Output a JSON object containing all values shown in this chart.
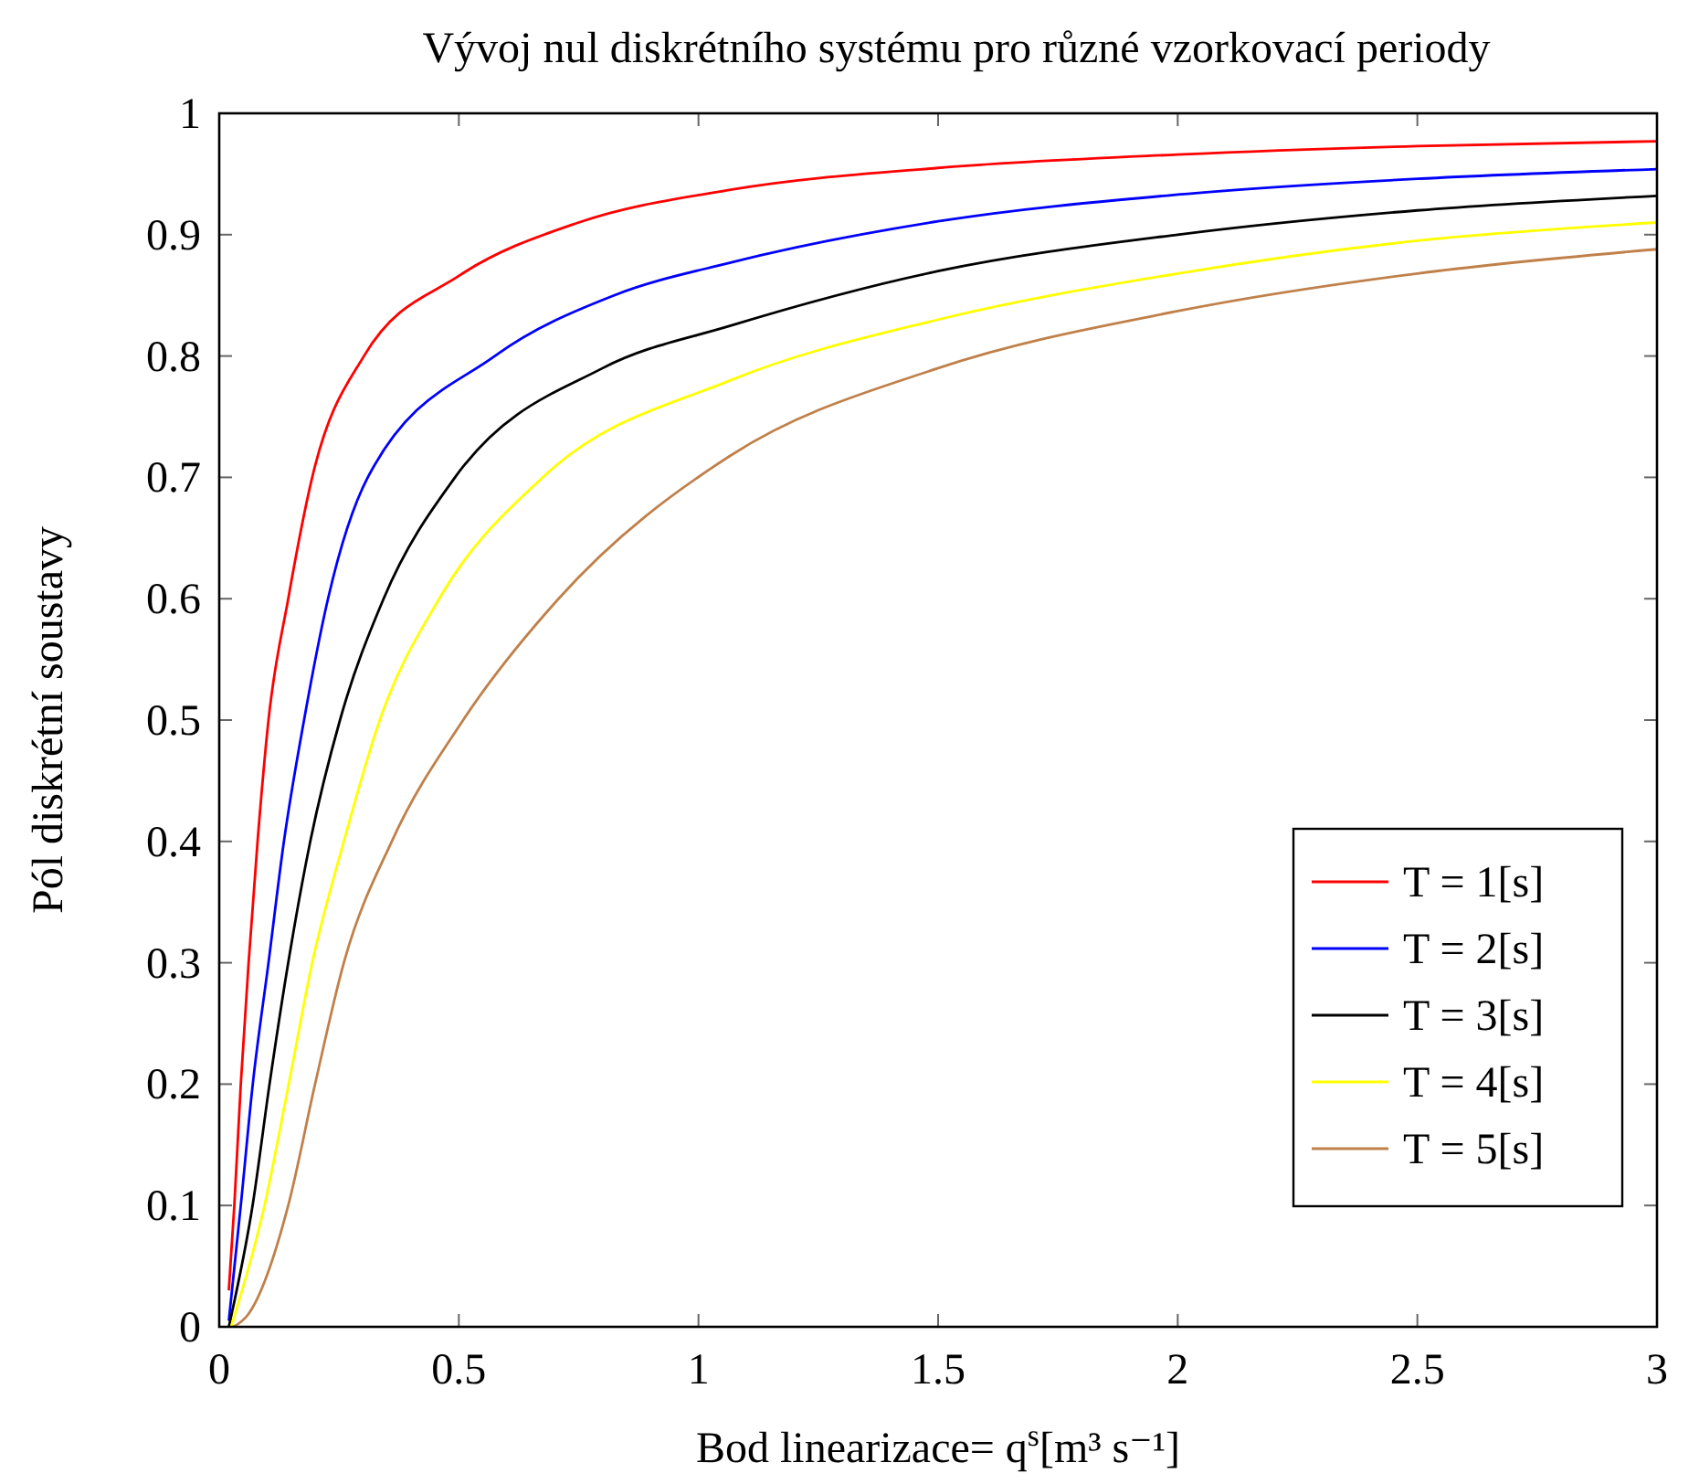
{
  "chart_data": {
    "type": "line",
    "title": "Vývoj nul diskrétního systému pro různé vzorkovací periody",
    "xlabel": "Bod linearizace= q$^{s}$[m³ s⁻¹]",
    "ylabel": "Pól diskrétní soustavy",
    "xlim": [
      0,
      3
    ],
    "ylim": [
      0,
      1
    ],
    "xticks": [
      0,
      0.5,
      1,
      1.5,
      2,
      2.5,
      3
    ],
    "yticks": [
      0,
      0.1,
      0.2,
      0.3,
      0.4,
      0.5,
      0.6,
      0.7,
      0.8,
      0.9,
      1
    ],
    "grid": false,
    "legend": "bottom right",
    "line_style": "solid",
    "series": [
      {
        "name": "T = 1[s]",
        "color": "#ff0000",
        "x": [
          0.02,
          0.0315,
          0.045,
          0.0613,
          0.08,
          0.1028,
          0.144,
          0.194,
          0.302,
          0.5,
          0.75,
          1.067,
          1.5,
          2,
          2.5,
          3
        ],
        "values": [
          0.03,
          0.1,
          0.2,
          0.3,
          0.4,
          0.5,
          0.6,
          0.7,
          0.8,
          0.866,
          0.91,
          0.937,
          0.955,
          0.966,
          0.973,
          0.977
        ]
      },
      {
        "name": "T = 2[s]",
        "color": "#0000ff",
        "x": [
          0.02,
          0.045,
          0.07,
          0.1028,
          0.135,
          0.177,
          0.227,
          0.31,
          0.575,
          0.824,
          1.067,
          1.5,
          2,
          2.5,
          3
        ],
        "values": [
          0.005,
          0.1,
          0.2,
          0.3,
          0.4,
          0.5,
          0.6,
          0.7,
          0.8,
          0.85,
          0.877,
          0.911,
          0.933,
          0.946,
          0.954
        ]
      },
      {
        "name": "T = 3[s]",
        "color": "#000000",
        "x": [
          0.02,
          0.0696,
          0.105,
          0.144,
          0.19,
          0.252,
          0.343,
          0.492,
          0.8,
          1.067,
          1.5,
          2,
          2.5,
          3
        ],
        "values": [
          0,
          0.1,
          0.2,
          0.3,
          0.4,
          0.5,
          0.6,
          0.7,
          0.79,
          0.825,
          0.87,
          0.9,
          0.92,
          0.932
        ]
      },
      {
        "name": "T = 4[s]",
        "color": "#ffff00",
        "x": [
          0.025,
          0.0945,
          0.145,
          0.194,
          0.26,
          0.335,
          0.459,
          0.675,
          1.067,
          1.5,
          2,
          2.5,
          3
        ],
        "values": [
          0,
          0.1,
          0.2,
          0.3,
          0.4,
          0.5,
          0.6,
          0.7,
          0.78,
          0.83,
          0.868,
          0.895,
          0.91
        ]
      },
      {
        "name": "T = 5[s]",
        "color": "#c0804a",
        "x": [
          0.03,
          0.06,
          0.144,
          0.2,
          0.26,
          0.36,
          0.509,
          0.708,
          1.067,
          1.5,
          2,
          2.5,
          3
        ],
        "values": [
          0,
          0.01,
          0.1,
          0.2,
          0.3,
          0.4,
          0.5,
          0.6,
          0.718,
          0.79,
          0.837,
          0.868,
          0.888
        ]
      }
    ]
  }
}
